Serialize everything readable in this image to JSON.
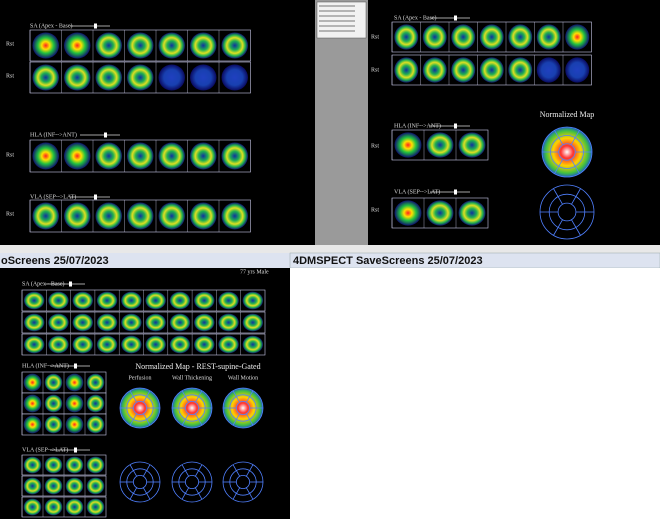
{
  "top_left": {
    "sa_label": "SA (Apex - Base)",
    "hla_label": "HLA (INF-->ANT)",
    "vla_label": "VLA (SEP-->LAT)",
    "row_labels": [
      "Rst",
      "Rst",
      "Rst",
      "Rst"
    ]
  },
  "top_right": {
    "sa_label": "SA (Apex - Base)",
    "hla_label": "HLA (INF-->ANT)",
    "vla_label": "VLA (SEP-->LAT)",
    "row_labels": [
      "Rst",
      "Rst",
      "Rst",
      "Rst"
    ],
    "map_title": "Normalized Map"
  },
  "bottom_left": {
    "header": "oScreens 25/07/2023",
    "patient": "77 yrs Male",
    "sa_label": "SA (Apex - Base)",
    "hla_label": "HLA (INF-->ANT)",
    "vla_label": "VLA (SEP-->LAT)",
    "map_title": "Normalized Map - REST-supine-Gated",
    "map_labels": [
      "Perfusion",
      "Wall Thickening",
      "Wall Motion"
    ]
  },
  "bottom_right": {
    "header": "4DMSPECT SaveScreens 25/07/2023"
  }
}
